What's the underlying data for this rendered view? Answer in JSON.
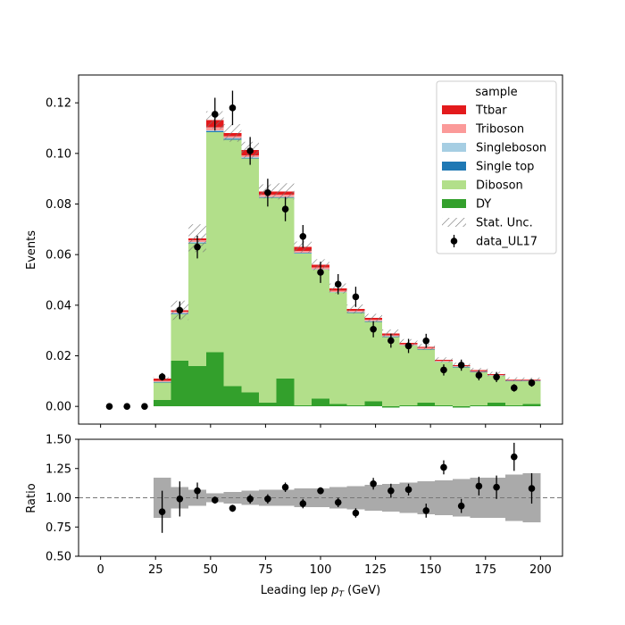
{
  "chart_data": [
    {
      "type": "bar",
      "stacked": true,
      "xlabel": "Leading lep p_T (GeV)",
      "ylabel": "Events",
      "xlim": [
        -10,
        210
      ],
      "ylim": [
        -0.007,
        0.131
      ],
      "yticks": [
        0.0,
        0.02,
        0.04,
        0.06,
        0.08,
        0.1,
        0.12
      ],
      "ytick_labels": [
        "0.00",
        "0.02",
        "0.04",
        "0.06",
        "0.08",
        "0.10",
        "0.12"
      ],
      "bin_edges": [
        24,
        32,
        40,
        48,
        56,
        64,
        72,
        80,
        88,
        96,
        104,
        112,
        120,
        128,
        136,
        144,
        152,
        160,
        168,
        176,
        184,
        192,
        200
      ],
      "series": [
        {
          "name": "DY",
          "color": "#33a02c",
          "values": [
            0.0025,
            0.018,
            0.016,
            0.0215,
            0.008,
            0.0055,
            0.0015,
            0.011,
            0.0005,
            0.003,
            0.001,
            0.0005,
            0.002,
            -0.0005,
            0.0005,
            0.0015,
            0.0005,
            -0.0005,
            0.0005,
            0.0015,
            0.0005,
            0.001
          ]
        },
        {
          "name": "Diboson",
          "color": "#b2df8a",
          "values": [
            0.007,
            0.0185,
            0.0485,
            0.087,
            0.0975,
            0.0925,
            0.081,
            0.0715,
            0.06,
            0.051,
            0.044,
            0.0365,
            0.0315,
            0.0275,
            0.0235,
            0.021,
            0.017,
            0.0155,
            0.013,
            0.0105,
            0.0095,
            0.009
          ]
        },
        {
          "name": "Single top",
          "color": "#1f78b4",
          "values": [
            0.0001,
            0.0001,
            0.0001,
            0.0002,
            0.0002,
            0.0002,
            0.0001,
            0.0001,
            0.0001,
            0.0001,
            0.0001,
            0.0001,
            0.0001,
            0.0001,
            0.0001,
            0.0001,
            0.0001,
            0.0001,
            0.0001,
            0.0001,
            0.0001,
            0.0001
          ]
        },
        {
          "name": "Singleboson",
          "color": "#a6cee3",
          "values": [
            0.0002,
            0.0003,
            0.0004,
            0.0005,
            0.0004,
            0.0003,
            0.0003,
            0.0003,
            0.0002,
            0.0002,
            0.0002,
            0.0002,
            0.0002,
            0.0001,
            0.0001,
            0.0001,
            0.0001,
            0.0001,
            0.0001,
            0.0001,
            0.0001,
            0.0001
          ]
        },
        {
          "name": "Triboson",
          "color": "#fb9a99",
          "values": [
            0.0003,
            0.0005,
            0.0007,
            0.0012,
            0.0008,
            0.0008,
            0.0008,
            0.0008,
            0.0006,
            0.0006,
            0.0005,
            0.0006,
            0.0005,
            0.0004,
            0.0004,
            0.0004,
            0.0003,
            0.0003,
            0.0003,
            0.0003,
            0.0003,
            0.0003
          ]
        },
        {
          "name": "Ttbar",
          "color": "#e31a1c",
          "values": [
            0.0009,
            0.0006,
            0.0008,
            0.0028,
            0.0012,
            0.0021,
            0.0013,
            0.0013,
            0.0016,
            0.0011,
            0.0008,
            0.0006,
            0.0007,
            0.0008,
            0.0006,
            0.0004,
            0.0004,
            0.0003,
            0.0003,
            0.0003,
            0.0002,
            0.0002
          ]
        }
      ],
      "stat_unc": [
        0.0006,
        0.0038,
        0.0055,
        0.0035,
        0.0035,
        0.0032,
        0.0028,
        0.0032,
        0.0022,
        0.0022,
        0.002,
        0.0018,
        0.0016,
        0.0015,
        0.0014,
        0.0012,
        0.001,
        0.001,
        0.0009,
        0.0009,
        0.0008,
        0.0007
      ],
      "stat_unc_label": "Stat. Unc.",
      "data": {
        "name": "data_UL17",
        "x": [
          4,
          12,
          20,
          28,
          36,
          44,
          52,
          60,
          68,
          76,
          84,
          92,
          100,
          108,
          116,
          124,
          132,
          140,
          148,
          156,
          164,
          172,
          180,
          188,
          196
        ],
        "y": [
          0.0,
          0.0,
          0.0,
          0.0117,
          0.038,
          0.063,
          0.1155,
          0.118,
          0.101,
          0.0845,
          0.078,
          0.0672,
          0.053,
          0.0483,
          0.0433,
          0.0305,
          0.026,
          0.0239,
          0.0259,
          0.0144,
          0.0163,
          0.0123,
          0.0116,
          0.0073,
          0.0093
        ],
        "yerr": [
          0.0,
          0.0,
          0.0,
          0.0015,
          0.0035,
          0.0045,
          0.0065,
          0.0068,
          0.0055,
          0.0055,
          0.0048,
          0.0045,
          0.0042,
          0.004,
          0.004,
          0.0032,
          0.0028,
          0.0028,
          0.0028,
          0.0022,
          0.0022,
          0.002,
          0.002,
          0.0015,
          0.0015
        ]
      },
      "legend": {
        "title": "sample",
        "position": "top-right"
      }
    },
    {
      "type": "scatter",
      "xlabel": "Leading lep p_T (GeV)",
      "ylabel": "Ratio",
      "xlim": [
        -10,
        210
      ],
      "ylim": [
        0.5,
        1.5
      ],
      "xticks": [
        0,
        25,
        50,
        75,
        100,
        125,
        150,
        175,
        200
      ],
      "yticks": [
        0.5,
        0.75,
        1.0,
        1.25,
        1.5
      ],
      "ytick_labels": [
        "0.50",
        "0.75",
        "1.00",
        "1.25",
        "1.50"
      ],
      "reference_line": 1.0,
      "unc_band": [
        0.17,
        0.09,
        0.07,
        0.04,
        0.05,
        0.06,
        0.07,
        0.07,
        0.08,
        0.08,
        0.09,
        0.1,
        0.11,
        0.12,
        0.13,
        0.14,
        0.15,
        0.16,
        0.17,
        0.17,
        0.2,
        0.21
      ],
      "x": [
        28,
        36,
        44,
        52,
        60,
        68,
        76,
        84,
        92,
        100,
        108,
        116,
        124,
        132,
        140,
        148,
        156,
        164,
        172,
        180,
        188,
        196
      ],
      "y": [
        0.88,
        0.99,
        1.06,
        0.98,
        0.91,
        0.99,
        0.99,
        1.09,
        0.95,
        1.06,
        0.96,
        0.87,
        1.12,
        1.06,
        1.07,
        0.89,
        1.26,
        0.93,
        1.1,
        1.09,
        1.35,
        1.08
      ],
      "yerr": [
        0.18,
        0.15,
        0.07,
        0.03,
        0.03,
        0.04,
        0.04,
        0.04,
        0.04,
        0.03,
        0.04,
        0.04,
        0.05,
        0.06,
        0.05,
        0.06,
        0.06,
        0.06,
        0.08,
        0.1,
        0.12,
        0.13
      ]
    }
  ]
}
